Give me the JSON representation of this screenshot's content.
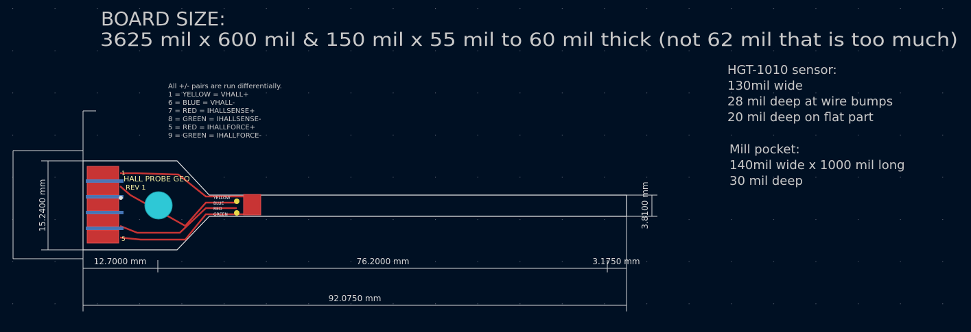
{
  "board_size": {
    "heading": "BOARD SIZE:",
    "detail": "3625 mil x 600 mil & 150 mil x 55 mil to 60 mil thick (not 62 mil that is too much)"
  },
  "wiring_notes": [
    "All +/- pairs are run differentially.",
    "1 = YELLOW = VHALL+",
    "6 = BLUE = VHALL-",
    "7 = RED = IHALLSENSE+",
    "8 = GREEN = IHALLSENSE-",
    "5 = RED = IHALLFORCE+",
    "9 = GREEN = IHALLFORCE-"
  ],
  "sensor_notes": [
    "HGT-1010 sensor:",
    "130mil wide",
    "28 mil deep at wire bumps",
    "20 mil deep on flat part",
    "Mill pocket:",
    "140mil wide x 1000 mil long",
    "30 mil deep"
  ],
  "silkscreen": [
    "HALL PROBE GEO",
    "REV 1"
  ],
  "pad_labels": [
    "1",
    "5"
  ],
  "net_labels": [
    "YELLOW",
    "BLUE",
    "RED",
    "GREEN"
  ],
  "dimensions": {
    "head_width": "15.2400 mm",
    "head_length": "12.7000 mm",
    "stem_length": "76.2000 mm",
    "tip_length": "3.1750 mm",
    "total_length": "92.0750 mm",
    "stem_width": "3.8100 mm"
  }
}
